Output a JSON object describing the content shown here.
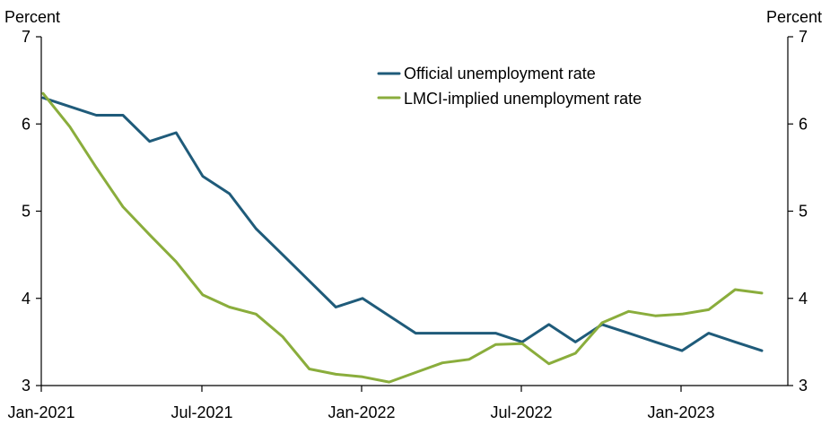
{
  "chart_data": {
    "type": "line",
    "ylabel_left": "Percent",
    "ylabel_right": "Percent",
    "ylim": [
      3,
      7
    ],
    "y_ticks": [
      3,
      4,
      5,
      6,
      7
    ],
    "x_ticks": [
      {
        "index": 0,
        "label": "Jan-2021"
      },
      {
        "index": 6,
        "label": "Jul-2021"
      },
      {
        "index": 12,
        "label": "Jan-2022"
      },
      {
        "index": 18,
        "label": "Jul-2022"
      },
      {
        "index": 24,
        "label": "Jan-2023"
      }
    ],
    "x": [
      "Jan-2021",
      "Feb-2021",
      "Mar-2021",
      "Apr-2021",
      "May-2021",
      "Jun-2021",
      "Jul-2021",
      "Aug-2021",
      "Sep-2021",
      "Oct-2021",
      "Nov-2021",
      "Dec-2021",
      "Jan-2022",
      "Feb-2022",
      "Mar-2022",
      "Apr-2022",
      "May-2022",
      "Jun-2022",
      "Jul-2022",
      "Aug-2022",
      "Sep-2022",
      "Oct-2022",
      "Nov-2022",
      "Dec-2022",
      "Jan-2023",
      "Feb-2023",
      "Mar-2023",
      "Apr-2023"
    ],
    "grid": false,
    "legend_position": "top-center",
    "series": [
      {
        "name": "Official unemployment rate",
        "color": "#1f5b7a",
        "values": [
          6.3,
          6.2,
          6.1,
          6.1,
          5.8,
          5.9,
          5.4,
          5.2,
          4.8,
          4.5,
          4.2,
          3.9,
          4.0,
          3.8,
          3.6,
          3.6,
          3.6,
          3.6,
          3.5,
          3.7,
          3.5,
          3.7,
          3.6,
          3.5,
          3.4,
          3.6,
          3.5,
          3.4
        ]
      },
      {
        "name": "LMCI-implied unemployment rate",
        "color": "#8aad3c",
        "values": [
          6.35,
          5.97,
          5.5,
          5.05,
          4.73,
          4.42,
          4.04,
          3.9,
          3.82,
          3.56,
          3.19,
          3.13,
          3.1,
          3.04,
          3.15,
          3.26,
          3.3,
          3.47,
          3.48,
          3.25,
          3.37,
          3.72,
          3.85,
          3.8,
          3.82,
          3.87,
          4.1,
          4.06
        ]
      }
    ]
  }
}
